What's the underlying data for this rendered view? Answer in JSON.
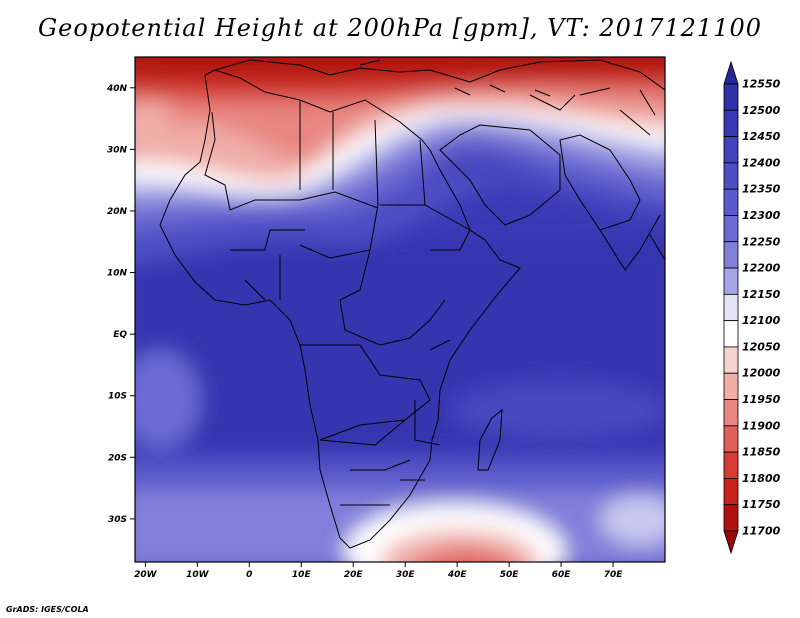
{
  "title": "Geopotential Height at 200hPa [gpm], VT: 2017121100",
  "credit": "GrADS: IGES/COLA",
  "map": {
    "region": "Africa",
    "projection": "latlon",
    "lon_range": [
      -22,
      80
    ],
    "lat_range": [
      -37,
      45
    ],
    "lat_ticks": [
      {
        "value": 40,
        "label": "40N"
      },
      {
        "value": 30,
        "label": "30N"
      },
      {
        "value": 20,
        "label": "20N"
      },
      {
        "value": 10,
        "label": "10N"
      },
      {
        "value": 0,
        "label": "EQ"
      },
      {
        "value": -10,
        "label": "10S"
      },
      {
        "value": -20,
        "label": "20S"
      },
      {
        "value": -30,
        "label": "30S"
      }
    ],
    "lon_ticks": [
      {
        "value": -20,
        "label": "20W"
      },
      {
        "value": -10,
        "label": "10W"
      },
      {
        "value": 0,
        "label": "0"
      },
      {
        "value": 10,
        "label": "10E"
      },
      {
        "value": 20,
        "label": "20E"
      },
      {
        "value": 30,
        "label": "30E"
      },
      {
        "value": 40,
        "label": "40E"
      },
      {
        "value": 50,
        "label": "50E"
      },
      {
        "value": 60,
        "label": "60E"
      },
      {
        "value": 70,
        "label": "70E"
      }
    ]
  },
  "colorbar": {
    "levels": [
      12550,
      12500,
      12450,
      12400,
      12350,
      12300,
      12250,
      12200,
      12150,
      12100,
      12050,
      12000,
      11950,
      11900,
      11850,
      11800,
      11750,
      11700
    ],
    "colors": [
      "#27279a",
      "#3030a8",
      "#3838b4",
      "#4242bc",
      "#4d4dc4",
      "#5a5acb",
      "#6b6bd2",
      "#8080da",
      "#a4a4e6",
      "#e4e4f6",
      "#ffffff",
      "#f7d3d0",
      "#f0aea9",
      "#e88681",
      "#e06059",
      "#d63c35",
      "#c8211c",
      "#b2120f",
      "#980808"
    ]
  }
}
